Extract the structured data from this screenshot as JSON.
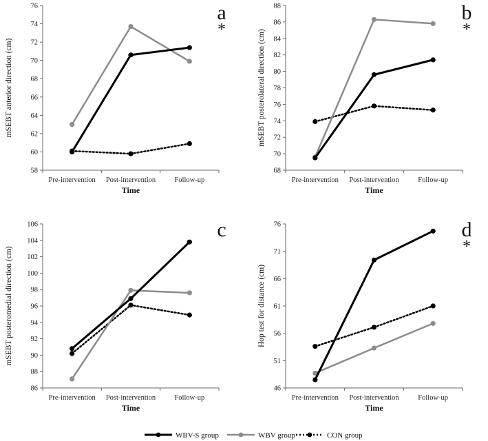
{
  "chart_data": [
    {
      "type": "line",
      "panel_label": "a",
      "significance": "*",
      "xlabel": "Time",
      "ylabel": "mSEBT anterior direction (cm)",
      "categories": [
        "Pre-intervention",
        "Post-intervention",
        "Follow-up"
      ],
      "ylim": [
        58,
        76
      ],
      "yticks": [
        58,
        60,
        62,
        64,
        66,
        68,
        70,
        72,
        74,
        76
      ],
      "series": [
        {
          "name": "WBV-S group",
          "values": [
            60.0,
            70.6,
            71.4
          ]
        },
        {
          "name": "WBV group",
          "values": [
            63.0,
            73.7,
            69.9
          ]
        },
        {
          "name": "CON group",
          "values": [
            60.1,
            59.8,
            60.9
          ]
        }
      ]
    },
    {
      "type": "line",
      "panel_label": "b",
      "significance": "*",
      "xlabel": "Time",
      "ylabel": "mSEBT posterolateral direction (cm)",
      "categories": [
        "Pre-intervention",
        "Post-intervention",
        "Follow-up"
      ],
      "ylim": [
        68,
        88
      ],
      "yticks": [
        68,
        70,
        72,
        74,
        76,
        78,
        80,
        82,
        84,
        86,
        88
      ],
      "series": [
        {
          "name": "WBV-S group",
          "values": [
            69.5,
            79.6,
            81.4
          ]
        },
        {
          "name": "WBV group",
          "values": [
            69.6,
            86.3,
            85.8
          ]
        },
        {
          "name": "CON group",
          "values": [
            73.9,
            75.8,
            75.3
          ]
        }
      ]
    },
    {
      "type": "line",
      "panel_label": "c",
      "significance": "",
      "xlabel": "Time",
      "ylabel": "mSEBT posteromedial direction (cm)",
      "categories": [
        "Pre-intervention",
        "Post-intervention",
        "Follow-up"
      ],
      "ylim": [
        86,
        106
      ],
      "yticks": [
        86,
        88,
        90,
        92,
        94,
        96,
        98,
        100,
        102,
        104,
        106
      ],
      "series": [
        {
          "name": "WBV-S group",
          "values": [
            90.8,
            96.9,
            103.8
          ]
        },
        {
          "name": "WBV group",
          "values": [
            87.1,
            97.9,
            97.6
          ]
        },
        {
          "name": "CON group",
          "values": [
            90.2,
            96.1,
            94.9
          ]
        }
      ]
    },
    {
      "type": "line",
      "panel_label": "d",
      "significance": "*",
      "xlabel": "Time",
      "ylabel": "Hop test for distance (cm)",
      "categories": [
        "Pre-intervention",
        "Post-intervention",
        "Follow-up"
      ],
      "ylim": [
        46,
        76
      ],
      "yticks": [
        46,
        51,
        56,
        61,
        66,
        71,
        76
      ],
      "series": [
        {
          "name": "WBV-S group",
          "values": [
            47.5,
            69.4,
            74.7
          ]
        },
        {
          "name": "WBV group",
          "values": [
            48.7,
            53.3,
            57.8
          ]
        },
        {
          "name": "CON group",
          "values": [
            53.6,
            57.1,
            61.0
          ]
        }
      ]
    }
  ],
  "legend": {
    "position": "bottom-center",
    "items": [
      {
        "name": "WBV-S group",
        "color": "#000000",
        "style": "solid"
      },
      {
        "name": "WBV group",
        "color": "#8c8c8c",
        "style": "solid"
      },
      {
        "name": "CON group",
        "color": "#000000",
        "style": "dotted"
      }
    ]
  }
}
